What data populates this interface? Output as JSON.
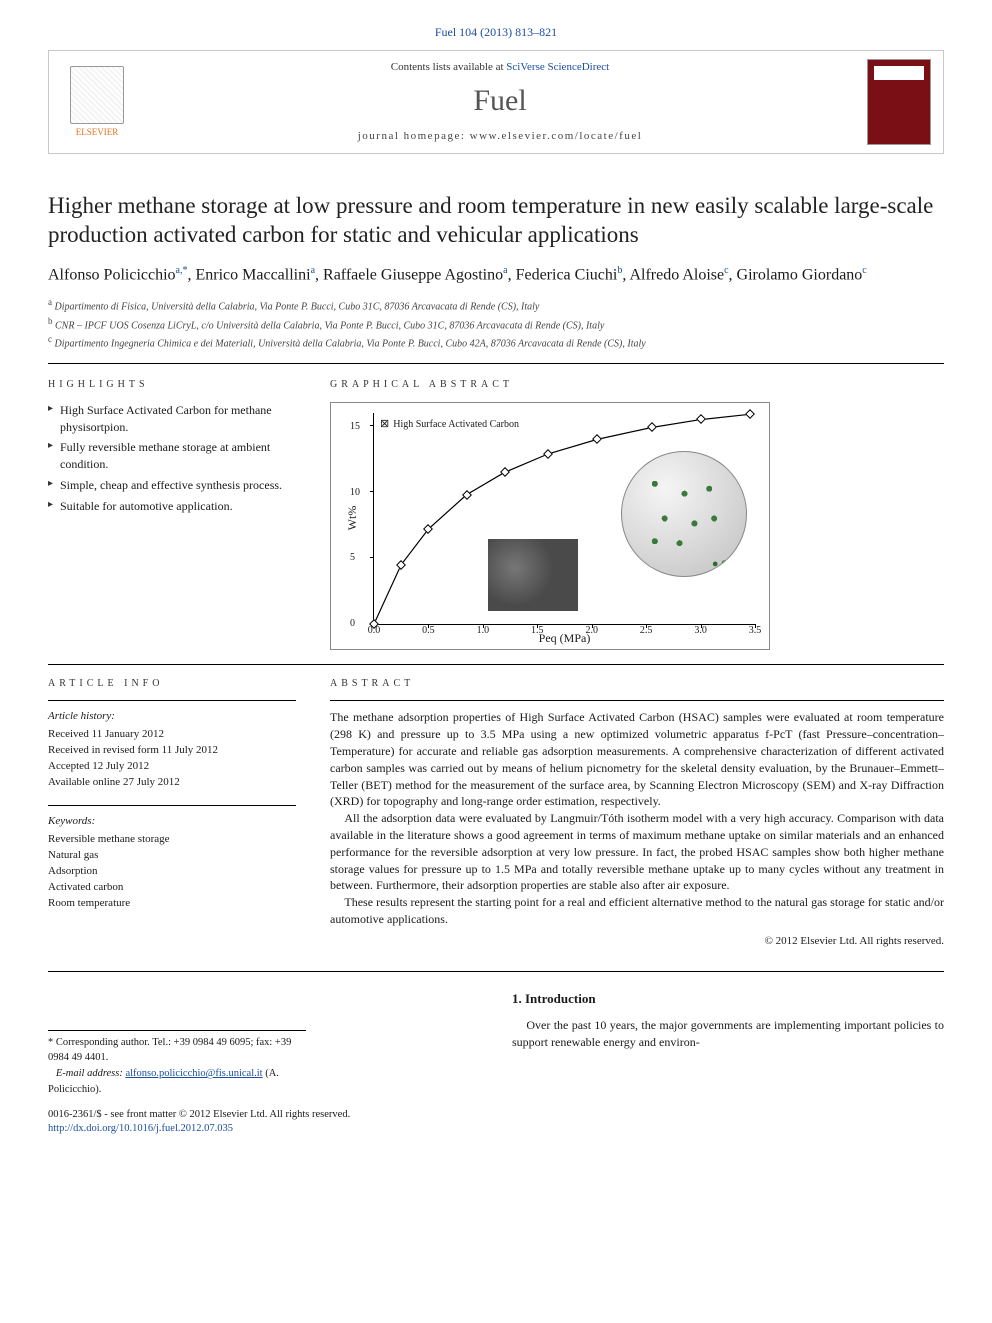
{
  "citation": "Fuel 104 (2013) 813–821",
  "header": {
    "contents_prefix": "Contents lists available at ",
    "contents_link": "SciVerse ScienceDirect",
    "journal": "Fuel",
    "homepage_prefix": "journal homepage: ",
    "homepage_url": "www.elsevier.com/locate/fuel",
    "publisher_name": "ELSEVIER"
  },
  "title": "Higher methane storage at low pressure and room temperature in new easily scalable large-scale production activated carbon for static and vehicular applications",
  "authors_html_parts": {
    "a1": "Alfonso Policicchio",
    "a1s": "a,",
    "a1c": "*",
    "a2": ", Enrico Maccallini",
    "a2s": "a",
    "a3": ", Raffaele Giuseppe Agostino",
    "a3s": "a",
    "a4": ", Federica Ciuchi",
    "a4s": "b",
    "a5": ", Alfredo Aloise",
    "a5s": "c",
    "a6": ", Girolamo Giordano",
    "a6s": "c"
  },
  "affiliations": [
    {
      "sup": "a",
      "text": "Dipartimento di Fisica, Università della Calabria, Via Ponte P. Bucci, Cubo 31C, 87036 Arcavacata di Rende (CS), Italy"
    },
    {
      "sup": "b",
      "text": "CNR – IPCF UOS Cosenza LiCryL, c/o Università della Calabria, Via Ponte P. Bucci, Cubo 31C, 87036 Arcavacata di Rende (CS), Italy"
    },
    {
      "sup": "c",
      "text": "Dipartimento Ingegneria Chimica e dei Materiali, Università della Calabria, Via Ponte P. Bucci, Cubo 42A, 87036 Arcavacata di Rende (CS), Italy"
    }
  ],
  "highlights_label": "HIGHLIGHTS",
  "highlights": [
    "High Surface Activated Carbon for methane physisortpion.",
    "Fully reversible methane storage at ambient condition.",
    "Simple, cheap and effective synthesis process.",
    "Suitable for automotive application."
  ],
  "graphical_label": "GRAPHICAL ABSTRACT",
  "chart": {
    "type": "scatter-line",
    "legend_marker": "⊠",
    "legend_text": "High Surface Activated Carbon",
    "ylabel": "Wt%",
    "xlabel": "Peq (MPa)",
    "ylim": [
      0,
      16
    ],
    "xlim": [
      0.0,
      3.5
    ],
    "yticks": [
      0,
      5,
      10,
      15
    ],
    "xticks": [
      0.0,
      0.5,
      1.0,
      1.5,
      2.0,
      2.5,
      3.0,
      3.5
    ],
    "points": [
      {
        "x": 0.0,
        "y": 0.0
      },
      {
        "x": 0.25,
        "y": 4.5
      },
      {
        "x": 0.5,
        "y": 7.2
      },
      {
        "x": 0.85,
        "y": 9.8
      },
      {
        "x": 1.2,
        "y": 11.5
      },
      {
        "x": 1.6,
        "y": 12.9
      },
      {
        "x": 2.05,
        "y": 14.0
      },
      {
        "x": 2.55,
        "y": 14.9
      },
      {
        "x": 3.0,
        "y": 15.5
      },
      {
        "x": 3.45,
        "y": 15.9
      }
    ],
    "line_color": "#000000",
    "marker_color": "#000000",
    "ch4_dot_color": "#2d6b2d",
    "ch4_label": "CH₄",
    "background": "#ffffff",
    "axis_color": "#000000",
    "tick_fontsize": 10,
    "label_fontsize": 12
  },
  "article_info_label": "ARTICLE INFO",
  "abstract_label": "ABSTRACT",
  "history_heading": "Article history:",
  "history": [
    "Received 11 January 2012",
    "Received in revised form 11 July 2012",
    "Accepted 12 July 2012",
    "Available online 27 July 2012"
  ],
  "keywords_heading": "Keywords:",
  "keywords": [
    "Reversible methane storage",
    "Natural gas",
    "Adsorption",
    "Activated carbon",
    "Room temperature"
  ],
  "abstract_paragraphs": [
    "The methane adsorption properties of High Surface Activated Carbon (HSAC) samples were evaluated at room temperature (298 K) and pressure up to 3.5 MPa using a new optimized volumetric apparatus f-PcT (fast Pressure–concentration–Temperature) for accurate and reliable gas adsorption measurements. A comprehensive characterization of different activated carbon samples was carried out by means of helium picnometry for the skeletal density evaluation, by the Brunauer–Emmett–Teller (BET) method for the measurement of the surface area, by Scanning Electron Microscopy (SEM) and X-ray Diffraction (XRD) for topography and long-range order estimation, respectively.",
    "All the adsorption data were evaluated by Langmuir/Tóth isotherm model with a very high accuracy. Comparison with data available in the literature shows a good agreement in terms of maximum methane uptake on similar materials and an enhanced performance for the reversible adsorption at very low pressure. In fact, the probed HSAC samples show both higher methane storage values for pressure up to 1.5 MPa and totally reversible methane uptake up to many cycles without any treatment in between. Furthermore, their adsorption properties are stable also after air exposure.",
    "These results represent the starting point for a real and efficient alternative method to the natural gas storage for static and/or automotive applications."
  ],
  "copyright": "© 2012 Elsevier Ltd. All rights reserved.",
  "intro_heading": "1. Introduction",
  "intro_text": "Over the past 10 years, the major governments are implementing important policies to support renewable energy and environ-",
  "corr_note": {
    "star": "*",
    "label": "Corresponding author. Tel.: +39 0984 49 6095; fax: +39 0984 49 4401.",
    "email_label": "E-mail address:",
    "email": "alfonso.policicchio@fis.unical.it",
    "email_paren": "(A. Policicchio)."
  },
  "footer": {
    "issn_line": "0016-2361/$ - see front matter © 2012 Elsevier Ltd. All rights reserved.",
    "doi_url": "http://dx.doi.org/10.1016/j.fuel.2012.07.035"
  }
}
